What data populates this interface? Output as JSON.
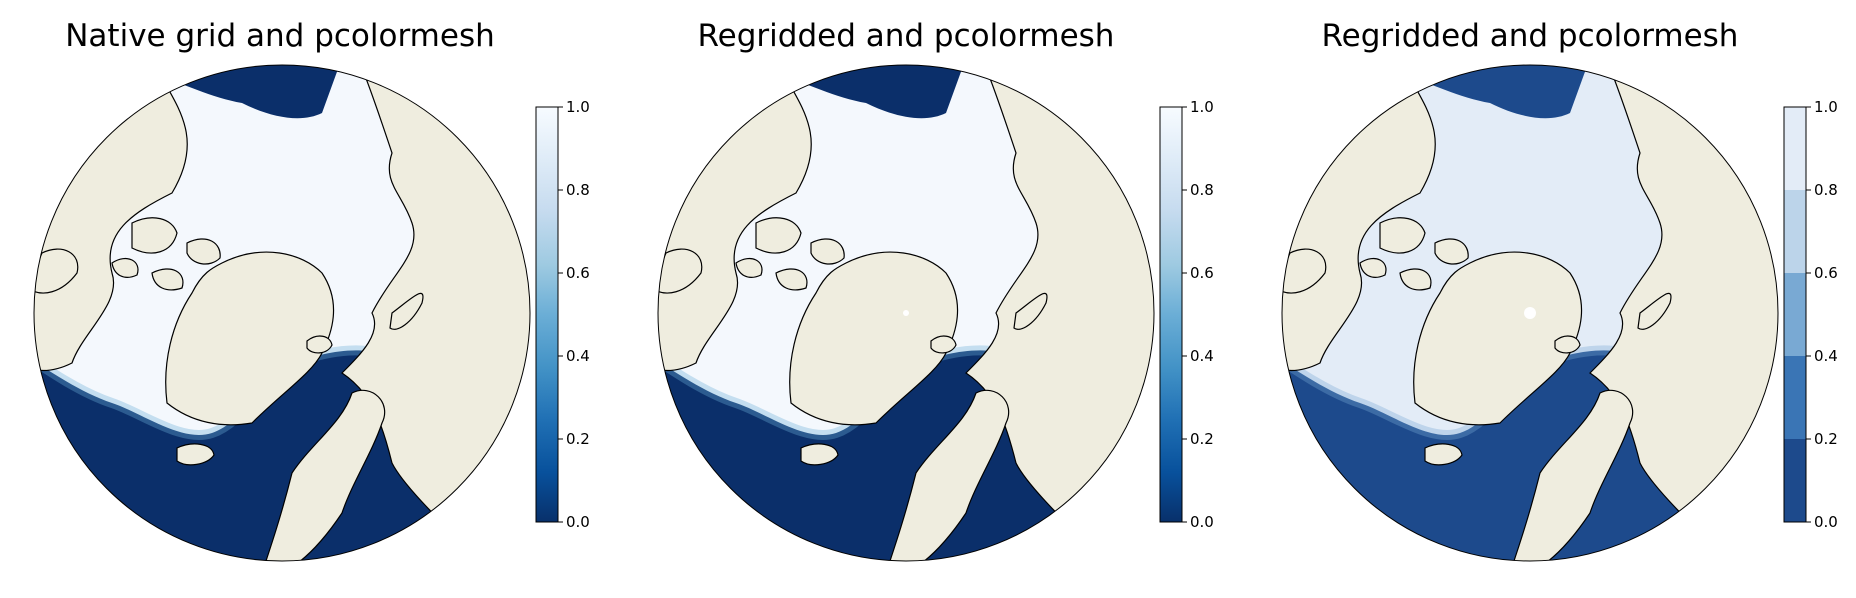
{
  "panels": [
    {
      "title": "Native grid and pcolormesh",
      "colorbar": {
        "min": 0.0,
        "max": 1.0,
        "ticks": [
          "0.0",
          "0.2",
          "0.4",
          "0.6",
          "0.8",
          "1.0"
        ],
        "discrete": false
      },
      "pole_hole": false
    },
    {
      "title": "Regridded and pcolormesh",
      "colorbar": {
        "min": 0.0,
        "max": 1.0,
        "ticks": [
          "0.0",
          "0.2",
          "0.4",
          "0.6",
          "0.8",
          "1.0"
        ],
        "discrete": false
      },
      "pole_hole": true
    },
    {
      "title": "Regridded and pcolormesh",
      "colorbar": {
        "min": 0.0,
        "max": 1.0,
        "ticks": [
          "0.0",
          "0.2",
          "0.4",
          "0.6",
          "0.8",
          "1.0"
        ],
        "discrete": true,
        "level_colors": [
          "#1d4a8c",
          "#3a75b5",
          "#79a9d3",
          "#bcd4ea",
          "#e3ecf7"
        ]
      },
      "pole_hole": true
    }
  ],
  "colors": {
    "land": "#efeddf",
    "ocean_open": "#0b2f6a",
    "ice": "#f4f8fd",
    "ice_discrete": "#e3ecf7",
    "ocean_discrete": "#1d4a8c",
    "coastline": "#000000",
    "colormap": [
      "#08306b",
      "#08519c",
      "#2171b5",
      "#4292c6",
      "#6baed6",
      "#9ecae1",
      "#c6dbef",
      "#deebf7",
      "#f7fbff"
    ]
  }
}
